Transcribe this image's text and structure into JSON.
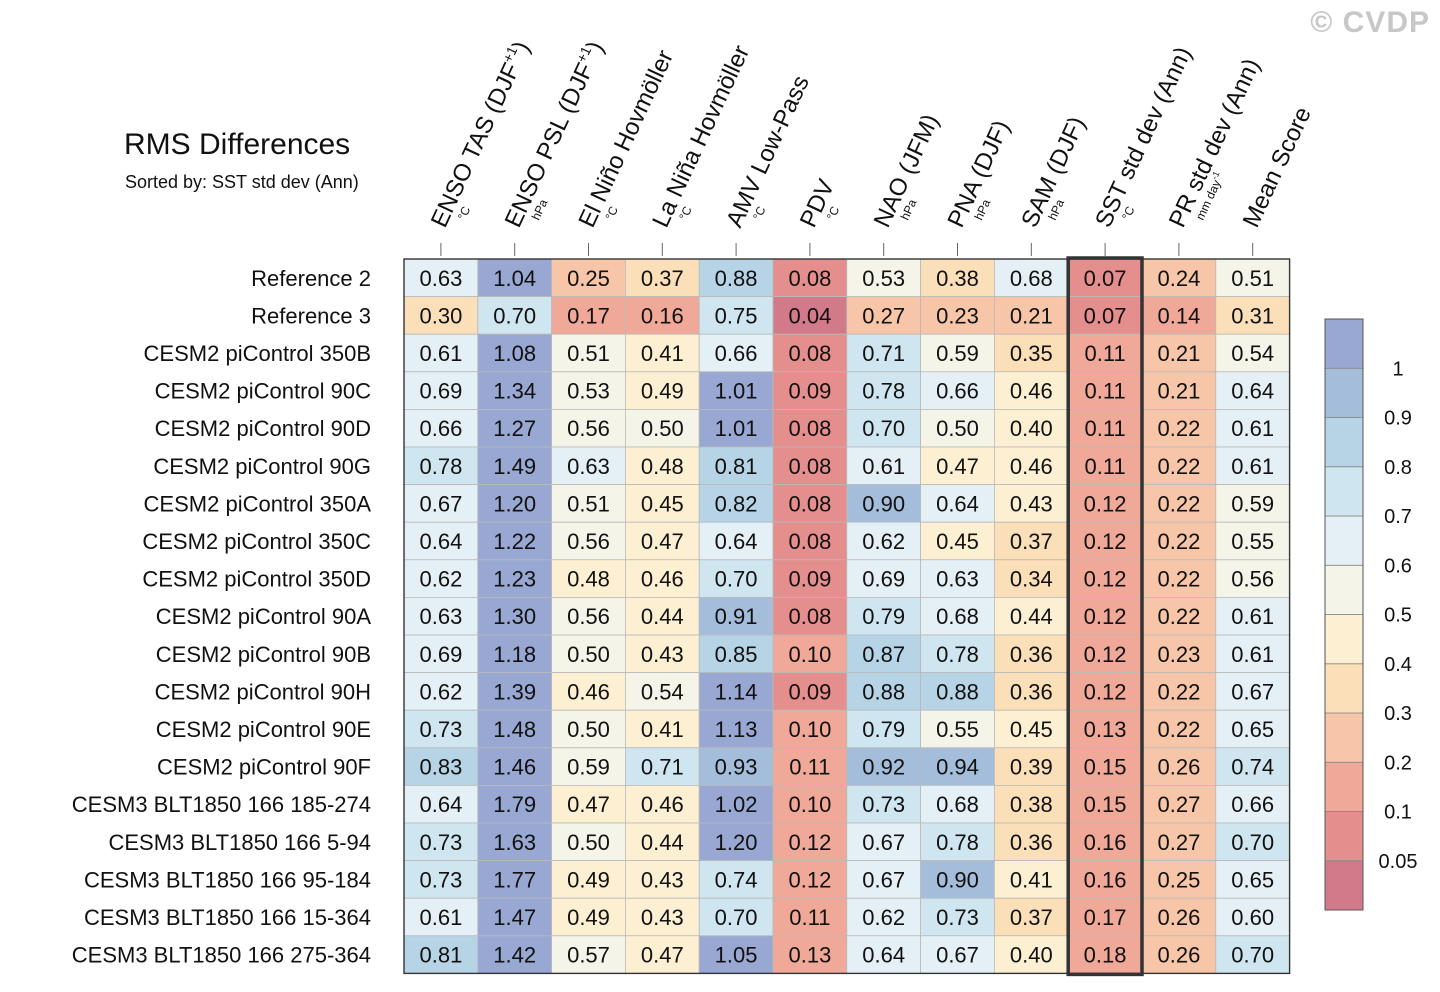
{
  "watermark": "© CVDP",
  "chart_data": {
    "type": "heatmap",
    "title": "RMS Differences",
    "subtitle": "Sorted by: SST std dev (Ann)",
    "highlight_column": "SST std dev (Ann)",
    "columns": [
      {
        "label": "ENSO TAS (DJF",
        "sup": "+1",
        "close": ")",
        "unit": "°C"
      },
      {
        "label": "ENSO PSL (DJF",
        "sup": "+1",
        "close": ")",
        "unit": "hPa"
      },
      {
        "label": "El Niño Hovmöller",
        "sup": "",
        "close": "",
        "unit": "°C"
      },
      {
        "label": "La Niña Hovmöller",
        "sup": "",
        "close": "",
        "unit": "°C"
      },
      {
        "label": "AMV Low-Pass",
        "sup": "",
        "close": "",
        "unit": "°C"
      },
      {
        "label": "PDV",
        "sup": "",
        "close": "",
        "unit": "°C"
      },
      {
        "label": "NAO (JFM)",
        "sup": "",
        "close": "",
        "unit": "hPa"
      },
      {
        "label": "PNA (DJF)",
        "sup": "",
        "close": "",
        "unit": "hPa"
      },
      {
        "label": "SAM (DJF)",
        "sup": "",
        "close": "",
        "unit": "hPa"
      },
      {
        "label": "SST std dev (Ann)",
        "sup": "",
        "close": "",
        "unit": "°C"
      },
      {
        "label": "PR std dev (Ann)",
        "sup": "",
        "close": "",
        "unit": "mm day",
        "unit_sup": "-1"
      },
      {
        "label": "Mean Score",
        "sup": "",
        "close": "",
        "unit": ""
      }
    ],
    "rows": [
      "Reference 2",
      "Reference 3",
      "CESM2 piControl 350B",
      "CESM2 piControl 90C",
      "CESM2 piControl 90D",
      "CESM2 piControl 90G",
      "CESM2 piControl 350A",
      "CESM2 piControl 350C",
      "CESM2 piControl 350D",
      "CESM2 piControl 90A",
      "CESM2 piControl 90B",
      "CESM2 piControl 90H",
      "CESM2 piControl 90E",
      "CESM2 piControl 90F",
      "CESM3 BLT1850 166 185-274",
      "CESM3 BLT1850 166 5-94",
      "CESM3 BLT1850 166 95-184",
      "CESM3 BLT1850 166 15-364",
      "CESM3 BLT1850 166 275-364"
    ],
    "values": [
      [
        0.63,
        1.04,
        0.25,
        0.37,
        0.88,
        0.08,
        0.53,
        0.38,
        0.68,
        0.07,
        0.24,
        0.51
      ],
      [
        0.3,
        0.7,
        0.17,
        0.16,
        0.75,
        0.04,
        0.27,
        0.23,
        0.21,
        0.07,
        0.14,
        0.31
      ],
      [
        0.61,
        1.08,
        0.51,
        0.41,
        0.66,
        0.08,
        0.71,
        0.59,
        0.35,
        0.11,
        0.21,
        0.54
      ],
      [
        0.69,
        1.34,
        0.53,
        0.49,
        1.01,
        0.09,
        0.78,
        0.66,
        0.46,
        0.11,
        0.21,
        0.64
      ],
      [
        0.66,
        1.27,
        0.56,
        0.5,
        1.01,
        0.08,
        0.7,
        0.5,
        0.4,
        0.11,
        0.22,
        0.61
      ],
      [
        0.78,
        1.49,
        0.63,
        0.48,
        0.81,
        0.08,
        0.61,
        0.47,
        0.46,
        0.11,
        0.22,
        0.61
      ],
      [
        0.67,
        1.2,
        0.51,
        0.45,
        0.82,
        0.08,
        0.9,
        0.64,
        0.43,
        0.12,
        0.22,
        0.59
      ],
      [
        0.64,
        1.22,
        0.56,
        0.47,
        0.64,
        0.08,
        0.62,
        0.45,
        0.37,
        0.12,
        0.22,
        0.55
      ],
      [
        0.62,
        1.23,
        0.48,
        0.46,
        0.7,
        0.09,
        0.69,
        0.63,
        0.34,
        0.12,
        0.22,
        0.56
      ],
      [
        0.63,
        1.3,
        0.56,
        0.44,
        0.91,
        0.08,
        0.79,
        0.68,
        0.44,
        0.12,
        0.22,
        0.61
      ],
      [
        0.69,
        1.18,
        0.5,
        0.43,
        0.85,
        0.1,
        0.87,
        0.78,
        0.36,
        0.12,
        0.23,
        0.61
      ],
      [
        0.62,
        1.39,
        0.46,
        0.54,
        1.14,
        0.09,
        0.88,
        0.88,
        0.36,
        0.12,
        0.22,
        0.67
      ],
      [
        0.73,
        1.48,
        0.5,
        0.41,
        1.13,
        0.1,
        0.79,
        0.55,
        0.45,
        0.13,
        0.22,
        0.65
      ],
      [
        0.83,
        1.46,
        0.59,
        0.71,
        0.93,
        0.11,
        0.92,
        0.94,
        0.39,
        0.15,
        0.26,
        0.74
      ],
      [
        0.64,
        1.79,
        0.47,
        0.46,
        1.02,
        0.1,
        0.73,
        0.68,
        0.38,
        0.15,
        0.27,
        0.66
      ],
      [
        0.73,
        1.63,
        0.5,
        0.44,
        1.2,
        0.12,
        0.67,
        0.78,
        0.36,
        0.16,
        0.27,
        0.7
      ],
      [
        0.73,
        1.77,
        0.49,
        0.43,
        0.74,
        0.12,
        0.67,
        0.9,
        0.41,
        0.16,
        0.25,
        0.65
      ],
      [
        0.61,
        1.47,
        0.49,
        0.43,
        0.7,
        0.11,
        0.62,
        0.73,
        0.37,
        0.17,
        0.26,
        0.6
      ],
      [
        0.81,
        1.42,
        0.57,
        0.47,
        1.05,
        0.13,
        0.64,
        0.67,
        0.4,
        0.18,
        0.26,
        0.7
      ]
    ],
    "colorbar": {
      "levels": [
        0.05,
        0.1,
        0.2,
        0.3,
        0.4,
        0.5,
        0.6,
        0.7,
        0.8,
        0.9,
        1
      ],
      "tick_labels": [
        "0.05",
        "0.1",
        "0.2",
        "0.3",
        "0.4",
        "0.5",
        "0.6",
        "0.7",
        "0.8",
        "0.9",
        "1"
      ],
      "colors": [
        "#d27a8a",
        "#e58e8e",
        "#f0a998",
        "#f7c6a8",
        "#fbdfb8",
        "#fdf0d2",
        "#f4f4e8",
        "#e4f0f5",
        "#cfe5ef",
        "#b7d4e6",
        "#a4bdda",
        "#99a8d3"
      ]
    }
  }
}
